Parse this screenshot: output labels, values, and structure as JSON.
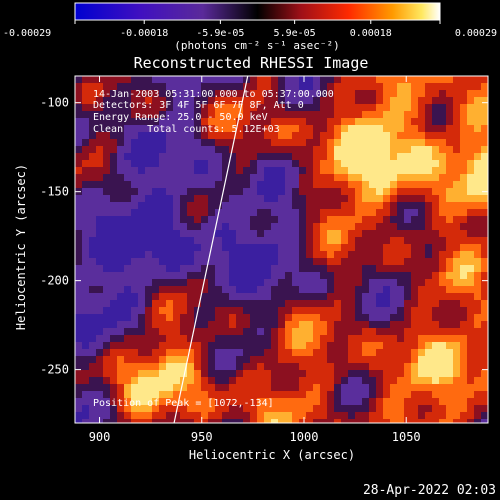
{
  "chart_data": {
    "type": "heatmap",
    "title": "Reconstructed RHESSI Image",
    "xlabel": "Heliocentric X (arcsec)",
    "ylabel": "Heliocentric Y (arcsec)",
    "xlim": [
      898,
      888
    ],
    "ylim": [
      -280,
      -85
    ],
    "x_ticks": [
      900,
      950,
      1000,
      1050
    ],
    "y_ticks": [
      -100,
      -150,
      -200,
      -250
    ],
    "colorbar": {
      "ticks": [
        "-0.00029",
        "-0.00018",
        "-5.9e-05",
        "5.9e-05",
        "0.00018",
        "0.00029"
      ],
      "tick_values": [
        -0.00029,
        -0.00018,
        -5.9e-05,
        5.9e-05,
        0.00018,
        0.00029
      ],
      "range": [
        -0.00029,
        0.00029
      ],
      "colormap": "blue-purple-red-orange-yellow-white",
      "unit_label": "(photons cm⁻² s⁻¹ asec⁻²)"
    },
    "annotations": {
      "time": "14-Jan-2003 05:31:00.000 to 05:37:00.000",
      "detectors": "Detectors: 3F 4F 5F 6F 7F 8F, Att 0",
      "energy": "Energy Range: 25.0 - 50.0 keV",
      "method": "Clean    Total counts: 5.12E+03",
      "peak": "Position of Peak = [1072,-134]"
    },
    "limb_line": {
      "x": [
        935,
        973
      ],
      "y": [
        -280,
        -85
      ]
    },
    "date_stamp": "28-Apr-2022 02:03"
  }
}
